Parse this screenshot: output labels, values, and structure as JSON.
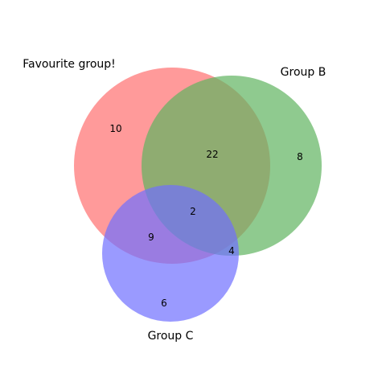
{
  "sets": [
    {
      "id": "a",
      "label": "Favourite group!",
      "color": "#ff6f6f"
    },
    {
      "id": "b",
      "label": "Group B",
      "color": "#5fb35f"
    },
    {
      "id": "c",
      "label": "Group C",
      "color": "#6f6fff"
    }
  ],
  "regions": {
    "a_only": "10",
    "b_only": "8",
    "c_only": "6",
    "ab": "22",
    "ac": "9",
    "bc": "4",
    "abc": "2"
  },
  "circle_opacity": 0.7
}
